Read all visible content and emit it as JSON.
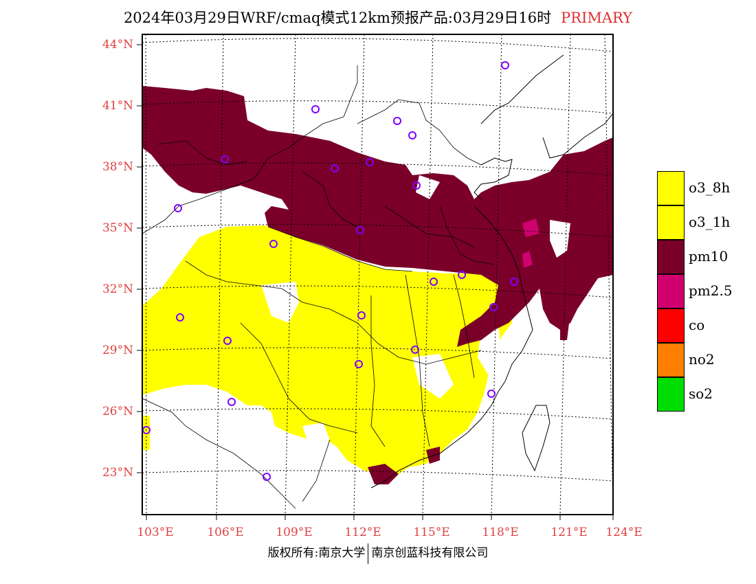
{
  "header": {
    "title": "2024年03月29日WRF/cmaq模式12km预报产品:03月29日16时",
    "tag": "PRIMARY"
  },
  "map": {
    "lat_labels": [
      "44°N",
      "41°N",
      "38°N",
      "35°N",
      "32°N",
      "29°N",
      "26°N",
      "23°N"
    ],
    "lon_labels": [
      "103°E",
      "106°E",
      "109°E",
      "112°E",
      "115°E",
      "118°E",
      "121°E",
      "124°E"
    ],
    "region_colors": {
      "pm10": "#7a0029",
      "o3": "#ffff00",
      "pm25": "#d0006f"
    },
    "station_marker_color": "#8000ff",
    "station_marker_icon": "circle-marker-icon"
  },
  "legend": {
    "items": [
      {
        "label": "o3_8h",
        "color": "#ffff00"
      },
      {
        "label": "o3_1h",
        "color": "#ffff00"
      },
      {
        "label": "pm10",
        "color": "#7a0029"
      },
      {
        "label": "pm2.5",
        "color": "#d0006f"
      },
      {
        "label": "co",
        "color": "#ff0000"
      },
      {
        "label": "no2",
        "color": "#ff8000"
      },
      {
        "label": "so2",
        "color": "#00dd00"
      }
    ]
  },
  "footer": {
    "left": "版权所有:南京大学",
    "right": "南京创蓝科技有限公司"
  }
}
